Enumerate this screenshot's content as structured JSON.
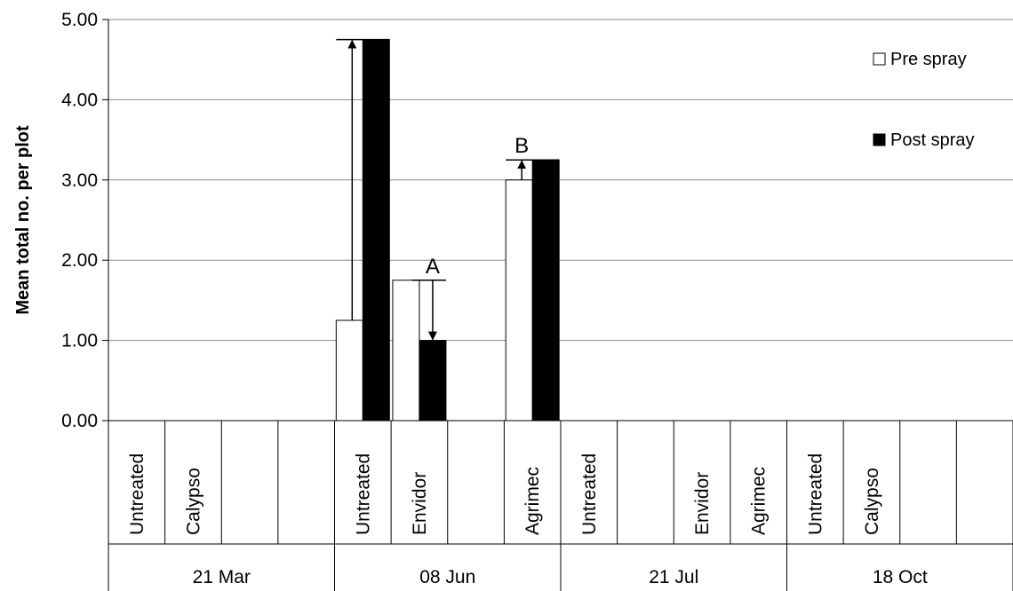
{
  "chart_data": {
    "type": "bar",
    "ylabel": "Mean  total no. per plot",
    "ylim": [
      0,
      5
    ],
    "yticks": [
      "0.00",
      "1.00",
      "2.00",
      "3.00",
      "4.00",
      "5.00"
    ],
    "grid": true,
    "legend_position": "top-right",
    "groups": [
      {
        "label": "21 Mar",
        "categories": [
          "Untreated",
          "Calypso",
          "",
          ""
        ]
      },
      {
        "label": "08 Jun",
        "categories": [
          "Untreated",
          "Envidor",
          "",
          "Agrimec"
        ]
      },
      {
        "label": "21 Jul",
        "categories": [
          "Untreated",
          "",
          "Envidor",
          "Agrimec"
        ]
      },
      {
        "label": "18 Oct",
        "categories": [
          "Untreated",
          "Calypso",
          "",
          ""
        ]
      }
    ],
    "series": [
      {
        "name": "Pre spray",
        "color": "#ffffff",
        "values": [
          0,
          0,
          0,
          0,
          1.25,
          1.75,
          0,
          3.0,
          0,
          0,
          0,
          0,
          0,
          0,
          0,
          0
        ]
      },
      {
        "name": "Post spray",
        "color": "#000000",
        "values": [
          0,
          0,
          0,
          0,
          4.75,
          1.0,
          0,
          3.25,
          0,
          0,
          0,
          0,
          0,
          0,
          0,
          0
        ]
      }
    ],
    "annotations": [
      {
        "label": "",
        "from": 1.25,
        "to": 4.75,
        "category_index": 4
      },
      {
        "label": "A",
        "from": 1.75,
        "to": 1.0,
        "category_index": 5
      },
      {
        "label": "B",
        "from": 3.0,
        "to": 3.25,
        "category_index": 7
      }
    ]
  }
}
